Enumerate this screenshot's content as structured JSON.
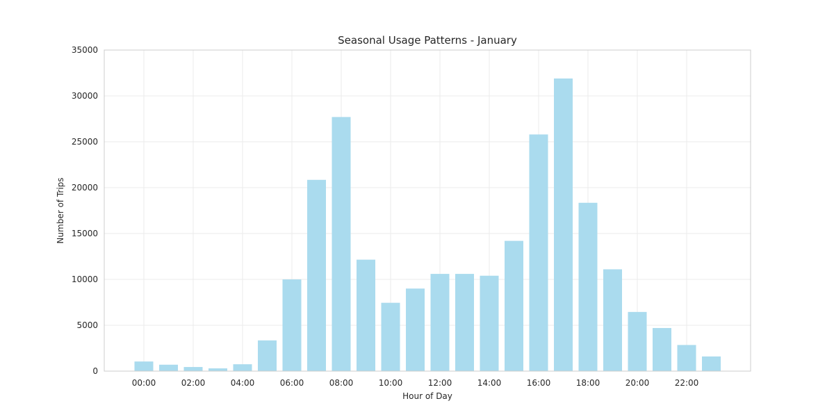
{
  "chart_data": {
    "type": "bar",
    "title": "Seasonal Usage Patterns - January",
    "xlabel": "Hour of Day",
    "ylabel": "Number of Trips",
    "categories": [
      "00:00",
      "01:00",
      "02:00",
      "03:00",
      "04:00",
      "05:00",
      "06:00",
      "07:00",
      "08:00",
      "09:00",
      "10:00",
      "11:00",
      "12:00",
      "13:00",
      "14:00",
      "15:00",
      "16:00",
      "17:00",
      "18:00",
      "19:00",
      "20:00",
      "21:00",
      "22:00",
      "23:00"
    ],
    "values": [
      1050,
      700,
      450,
      300,
      750,
      3350,
      10000,
      20850,
      27700,
      12150,
      7450,
      9000,
      10600,
      10600,
      10400,
      14200,
      25800,
      31900,
      18350,
      11100,
      6450,
      4700,
      2850,
      1600
    ],
    "x_tick_labels": [
      "00:00",
      "02:00",
      "04:00",
      "06:00",
      "08:00",
      "10:00",
      "12:00",
      "14:00",
      "16:00",
      "18:00",
      "20:00",
      "22:00"
    ],
    "y_tick_labels": [
      "0",
      "5000",
      "10000",
      "15000",
      "20000",
      "25000",
      "30000",
      "35000"
    ],
    "ylim": [
      0,
      35000
    ],
    "grid": true,
    "legend": "none",
    "colors": {
      "bar": "#aadbee",
      "grid": "#ebebeb",
      "frame": "#cccccc",
      "text": "#262626"
    }
  }
}
